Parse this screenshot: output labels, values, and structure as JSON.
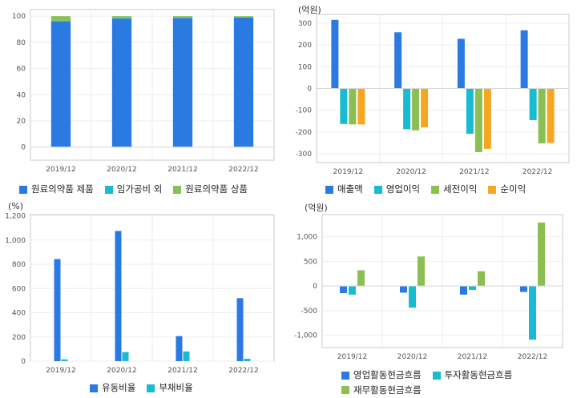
{
  "charts": [
    {
      "id": "product-mix",
      "unit_label": "",
      "legend_cols": 3,
      "chart_data": {
        "type": "bar",
        "stacked": true,
        "categories": [
          "2019/12",
          "2020/12",
          "2021/12",
          "2022/12"
        ],
        "ylim": [
          -10,
          105
        ],
        "yticks": [
          0,
          20,
          40,
          60,
          80,
          100
        ],
        "ytick_labels": [
          "0",
          "20",
          "40",
          "60",
          "80",
          "100"
        ],
        "series": [
          {
            "name": "원료의약품 제품",
            "color": "#2b7ae2",
            "values": [
              96,
              98,
              98.5,
              99
            ]
          },
          {
            "name": "임가공비 외",
            "color": "#18bcd0",
            "values": [
              0.5,
              0.5,
              0.3,
              0.3
            ]
          },
          {
            "name": "원료의약품 상품",
            "color": "#8cbf52",
            "values": [
              3.5,
              1.5,
              1.2,
              0.7
            ]
          }
        ]
      }
    },
    {
      "id": "profit",
      "unit_label": "(억원)",
      "legend_cols": 4,
      "chart_data": {
        "type": "bar",
        "stacked": false,
        "categories": [
          "2019/12",
          "2020/12",
          "2021/12",
          "2022/12"
        ],
        "ylim": [
          -340,
          340
        ],
        "yticks": [
          -300,
          -200,
          -100,
          0,
          100,
          200,
          300
        ],
        "ytick_labels": [
          "-300",
          "-200",
          "-100",
          "0",
          "100",
          "200",
          "300"
        ],
        "series": [
          {
            "name": "매출액",
            "color": "#2b7ae2",
            "values": [
              315,
              258,
              228,
              267
            ]
          },
          {
            "name": "영업이익",
            "color": "#18bcd0",
            "values": [
              -163,
              -187,
              -208,
              -145
            ]
          },
          {
            "name": "세전이익",
            "color": "#8cbf52",
            "values": [
              -165,
              -192,
              -292,
              -252
            ]
          },
          {
            "name": "순이익",
            "color": "#f5a623",
            "values": [
              -165,
              -178,
              -277,
              -250
            ]
          }
        ]
      }
    },
    {
      "id": "stability",
      "unit_label": "(%)",
      "legend_cols": 2,
      "chart_data": {
        "type": "bar",
        "stacked": false,
        "categories": [
          "2019/12",
          "2020/12",
          "2021/12",
          "2022/12"
        ],
        "ylim": [
          0,
          1210
        ],
        "yticks": [
          0,
          200,
          400,
          600,
          800,
          1000,
          1200
        ],
        "ytick_labels": [
          "0",
          "200",
          "400",
          "600",
          "800",
          "1,000",
          "1,200"
        ],
        "series": [
          {
            "name": "유동비율",
            "color": "#2b7ae2",
            "values": [
              843,
              1075,
              207,
              520
            ]
          },
          {
            "name": "부채비율",
            "color": "#18bcd0",
            "values": [
              15,
              75,
              80,
              20
            ]
          }
        ]
      }
    },
    {
      "id": "cashflow",
      "unit_label": "(억원)",
      "legend_cols": 2,
      "chart_data": {
        "type": "bar",
        "stacked": false,
        "categories": [
          "2019/12",
          "2020/12",
          "2021/12",
          "2022/12"
        ],
        "ylim": [
          -1250,
          1450
        ],
        "yticks": [
          -1000,
          -500,
          0,
          500,
          1000
        ],
        "ytick_labels": [
          "-1,000",
          "-500",
          "0",
          "500",
          "1,000"
        ],
        "series": [
          {
            "name": "영업활동현금흐름",
            "color": "#2b7ae2",
            "values": [
              -145,
              -135,
              -175,
              -120
            ]
          },
          {
            "name": "투자활동현금흐름",
            "color": "#18bcd0",
            "values": [
              -175,
              -440,
              -80,
              -1090
            ]
          },
          {
            "name": "재무활동현금흐름",
            "color": "#8cbf52",
            "values": [
              320,
              600,
              300,
              1290
            ]
          }
        ]
      }
    }
  ]
}
